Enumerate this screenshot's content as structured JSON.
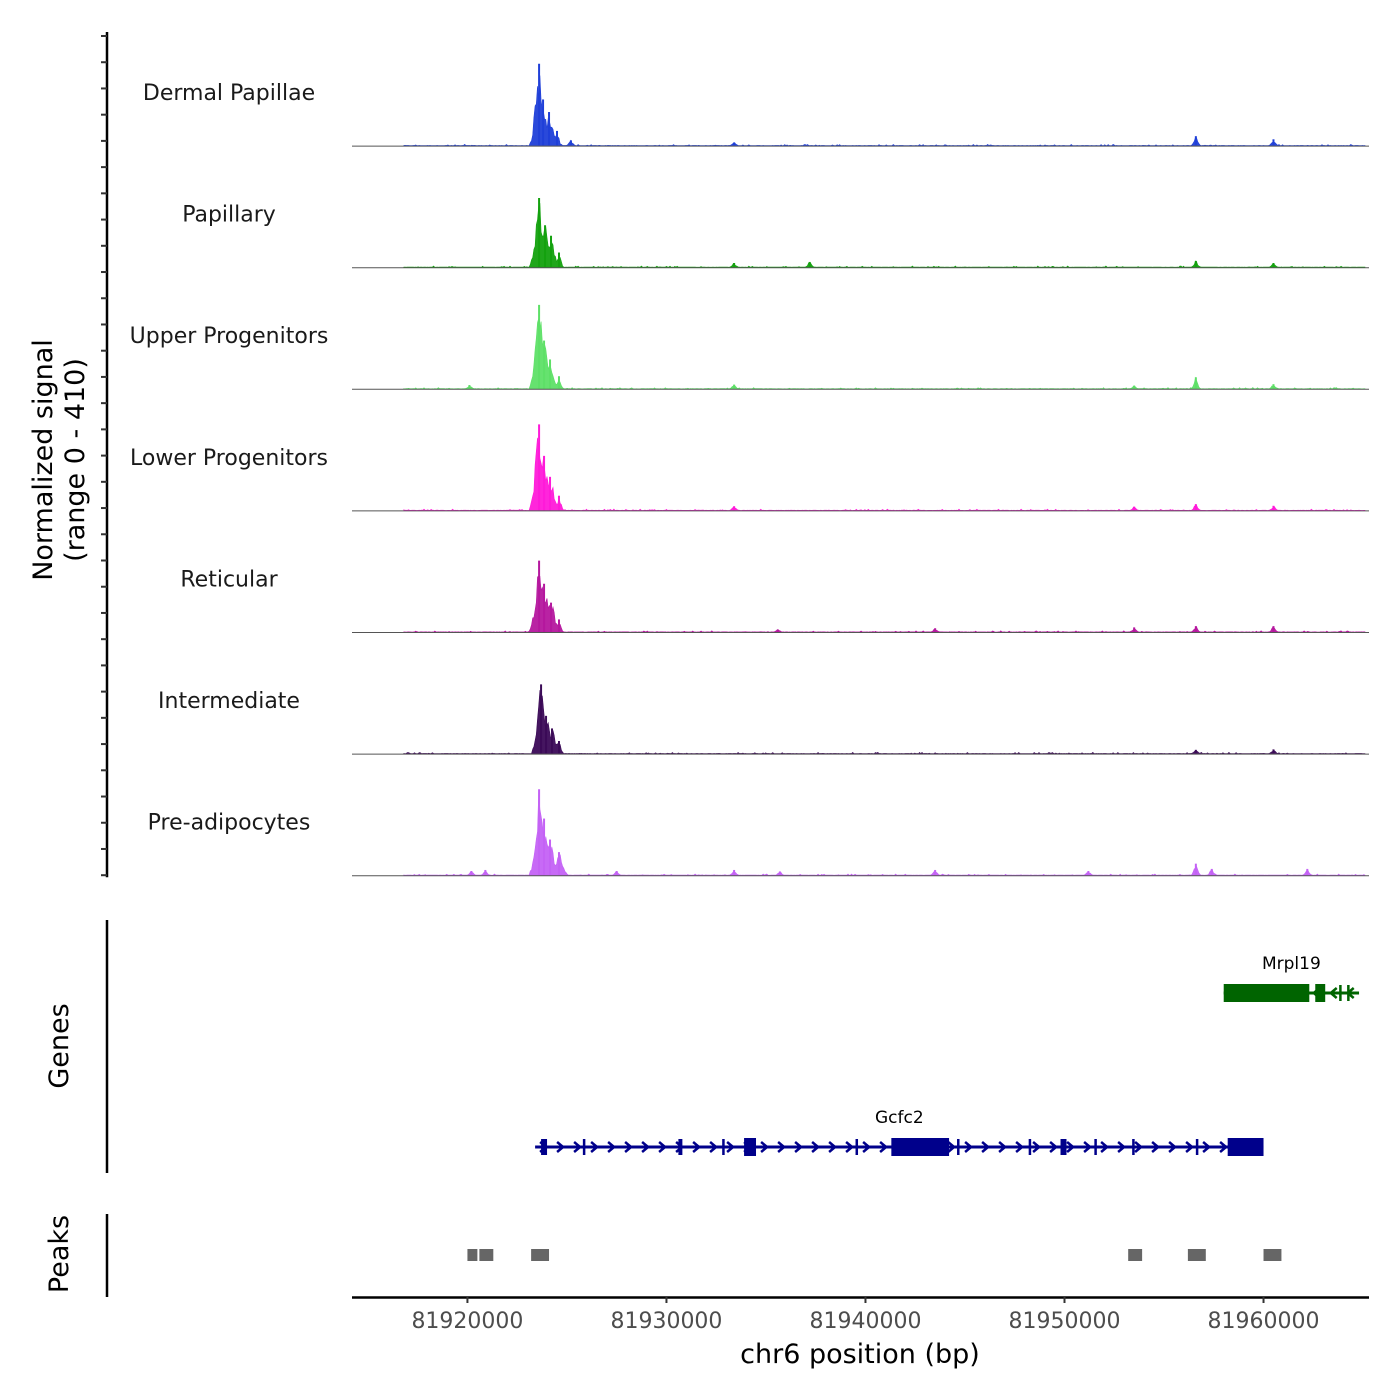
{
  "chart_data": {
    "type": "area",
    "subtype": "genome-coverage-track",
    "ylabel_line1": "Normalized signal",
    "ylabel_line2": "(range 0 - 410)",
    "y_range": [
      0,
      410
    ],
    "xlabel": "chr6 position (bp)",
    "x_range": [
      81914200,
      81965300
    ],
    "x_ticks": [
      81920000,
      81930000,
      81940000,
      81950000,
      81960000
    ],
    "x_tick_labels": [
      "81920000",
      "81930000",
      "81940000",
      "81950000",
      "81960000"
    ],
    "region_start": 81916800,
    "region_end": 81965100,
    "tracks": [
      {
        "name": "Dermal Papillae",
        "color": "#1f3fd8",
        "peaks": [
          [
            81923600,
            390
          ],
          [
            81923800,
            220
          ],
          [
            81924100,
            160
          ],
          [
            81924500,
            70
          ],
          [
            81925200,
            25
          ],
          [
            81933400,
            15
          ],
          [
            81956600,
            45
          ],
          [
            81960500,
            30
          ]
        ]
      },
      {
        "name": "Papillary",
        "color": "#13a10e",
        "peaks": [
          [
            81923600,
            330
          ],
          [
            81923900,
            200
          ],
          [
            81924200,
            150
          ],
          [
            81924600,
            70
          ],
          [
            81933400,
            20
          ],
          [
            81937200,
            25
          ],
          [
            81956600,
            30
          ],
          [
            81960500,
            20
          ]
        ]
      },
      {
        "name": "Upper Progenitors",
        "color": "#5ee067",
        "peaks": [
          [
            81923600,
            400
          ],
          [
            81923850,
            230
          ],
          [
            81924150,
            140
          ],
          [
            81924600,
            60
          ],
          [
            81920100,
            18
          ],
          [
            81933400,
            20
          ],
          [
            81953500,
            15
          ],
          [
            81956600,
            55
          ],
          [
            81960500,
            22
          ]
        ]
      },
      {
        "name": "Lower Progenitors",
        "color": "#ff1ad9",
        "peaks": [
          [
            81923600,
            410
          ],
          [
            81923850,
            260
          ],
          [
            81924150,
            160
          ],
          [
            81924600,
            70
          ],
          [
            81933400,
            20
          ],
          [
            81953500,
            18
          ],
          [
            81956600,
            30
          ],
          [
            81960500,
            22
          ]
        ]
      },
      {
        "name": "Reticular",
        "color": "#b5179e",
        "peaks": [
          [
            81923600,
            340
          ],
          [
            81923850,
            230
          ],
          [
            81924200,
            140
          ],
          [
            81924600,
            60
          ],
          [
            81935600,
            12
          ],
          [
            81943500,
            18
          ],
          [
            81953500,
            22
          ],
          [
            81956600,
            28
          ],
          [
            81960500,
            28
          ]
        ]
      },
      {
        "name": "Intermediate",
        "color": "#3b0a57",
        "peaks": [
          [
            81923700,
            330
          ],
          [
            81923950,
            180
          ],
          [
            81924250,
            120
          ],
          [
            81924600,
            60
          ],
          [
            81956600,
            18
          ],
          [
            81960500,
            20
          ]
        ]
      },
      {
        "name": "Pre-adipocytes",
        "color": "#c462f5",
        "peaks": [
          [
            81923600,
            410
          ],
          [
            81923850,
            270
          ],
          [
            81924150,
            170
          ],
          [
            81924600,
            110
          ],
          [
            81920200,
            20
          ],
          [
            81920900,
            25
          ],
          [
            81927500,
            20
          ],
          [
            81933400,
            25
          ],
          [
            81935700,
            18
          ],
          [
            81943500,
            25
          ],
          [
            81951200,
            20
          ],
          [
            81956600,
            55
          ],
          [
            81957400,
            30
          ],
          [
            81962200,
            30
          ]
        ]
      }
    ],
    "genes_label": "Genes",
    "genes": [
      {
        "name": "Mrpl19",
        "color": "#006400",
        "strand": "-",
        "start": 81958000,
        "end": 81964800,
        "exons": [
          [
            81958000,
            81962300
          ],
          [
            81962600,
            81963100
          ],
          [
            81963800,
            81963900
          ],
          [
            81964200,
            81964300
          ]
        ]
      },
      {
        "name": "Gcfc2",
        "color": "#00008b",
        "strand": "+",
        "start": 81923400,
        "end": 81960000,
        "exons": [
          [
            81923700,
            81924000
          ],
          [
            81925800,
            81925900
          ],
          [
            81930600,
            81930800
          ],
          [
            81932800,
            81932900
          ],
          [
            81933900,
            81934500
          ],
          [
            81939500,
            81939600
          ],
          [
            81941300,
            81944200
          ],
          [
            81944600,
            81944700
          ],
          [
            81948200,
            81948300
          ],
          [
            81949800,
            81950100
          ],
          [
            81951500,
            81951600
          ],
          [
            81953400,
            81953500
          ],
          [
            81956600,
            81956700
          ],
          [
            81958200,
            81960000
          ]
        ]
      }
    ],
    "peaks_label": "Peaks",
    "peak_color": "#666666",
    "peak_regions": [
      [
        81920000,
        81920500
      ],
      [
        81920600,
        81921300
      ],
      [
        81923200,
        81924100
      ],
      [
        81953200,
        81953900
      ],
      [
        81956200,
        81957100
      ],
      [
        81960000,
        81960900
      ]
    ]
  }
}
